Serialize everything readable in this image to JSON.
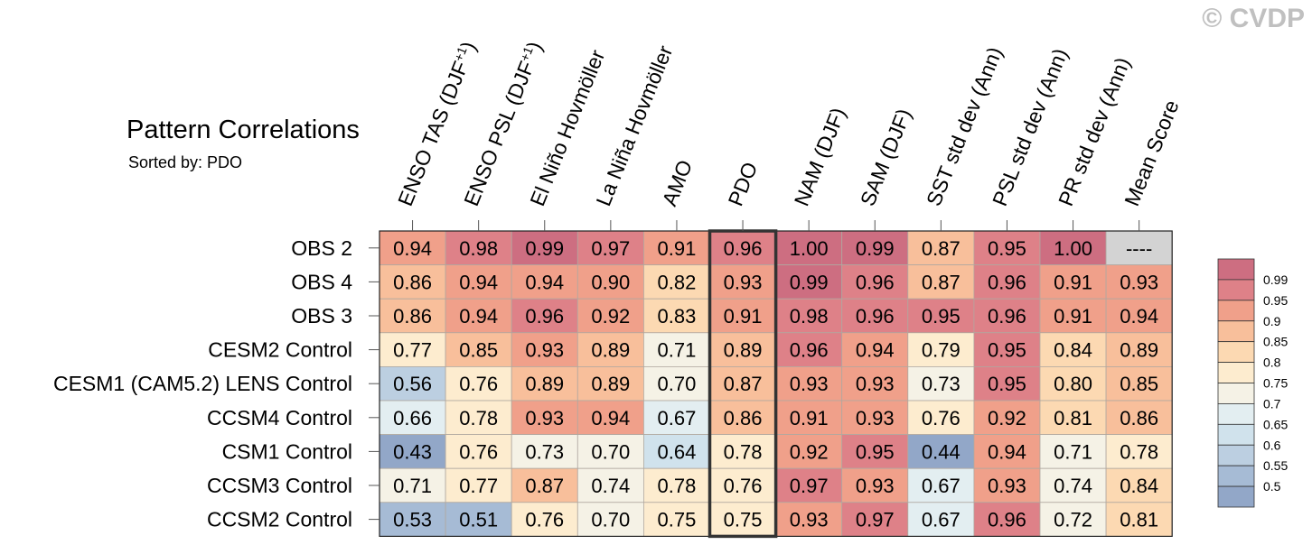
{
  "watermark": "© CVDP",
  "chart_data": {
    "type": "heatmap",
    "title": "Pattern Correlations",
    "subtitle": "Sorted by: PDO",
    "columns": [
      "ENSO TAS (DJF+1)",
      "ENSO PSL (DJF+1)",
      "El Niño Hovmöller",
      "La Niña Hovmöller",
      "AMO",
      "PDO",
      "NAM (DJF)",
      "SAM (DJF)",
      "SST std dev (Ann)",
      "PSL std dev (Ann)",
      "PR std dev (Ann)",
      "Mean Score"
    ],
    "rows": [
      "OBS 2",
      "OBS 4",
      "OBS 3",
      "CESM2 Control",
      "CESM1 (CAM5.2) LENS Control",
      "CCSM4 Control",
      "CSM1 Control",
      "CCSM3 Control",
      "CCSM2 Control"
    ],
    "values": [
      [
        "0.94",
        "0.98",
        "0.99",
        "0.97",
        "0.91",
        "0.96",
        "1.00",
        "0.99",
        "0.87",
        "0.95",
        "1.00",
        "----"
      ],
      [
        "0.86",
        "0.94",
        "0.94",
        "0.90",
        "0.82",
        "0.93",
        "0.99",
        "0.96",
        "0.87",
        "0.96",
        "0.91",
        "0.93"
      ],
      [
        "0.86",
        "0.94",
        "0.96",
        "0.92",
        "0.83",
        "0.91",
        "0.98",
        "0.96",
        "0.95",
        "0.96",
        "0.91",
        "0.94"
      ],
      [
        "0.77",
        "0.85",
        "0.93",
        "0.89",
        "0.71",
        "0.89",
        "0.96",
        "0.94",
        "0.79",
        "0.95",
        "0.84",
        "0.89"
      ],
      [
        "0.56",
        "0.76",
        "0.89",
        "0.89",
        "0.70",
        "0.87",
        "0.93",
        "0.93",
        "0.73",
        "0.95",
        "0.80",
        "0.85"
      ],
      [
        "0.66",
        "0.78",
        "0.93",
        "0.94",
        "0.67",
        "0.86",
        "0.91",
        "0.93",
        "0.76",
        "0.92",
        "0.81",
        "0.86"
      ],
      [
        "0.43",
        "0.76",
        "0.73",
        "0.70",
        "0.64",
        "0.78",
        "0.92",
        "0.95",
        "0.44",
        "0.94",
        "0.71",
        "0.78"
      ],
      [
        "0.71",
        "0.77",
        "0.87",
        "0.74",
        "0.78",
        "0.76",
        "0.97",
        "0.93",
        "0.67",
        "0.93",
        "0.74",
        "0.84"
      ],
      [
        "0.53",
        "0.51",
        "0.76",
        "0.70",
        "0.75",
        "0.75",
        "0.93",
        "0.97",
        "0.67",
        "0.96",
        "0.72",
        "0.81"
      ]
    ],
    "highlight_column": "PDO",
    "missing_color": "#d3d3d3",
    "colorbar": {
      "labels": [
        "0.99",
        "0.95",
        "0.9",
        "0.85",
        "0.8",
        "0.75",
        "0.7",
        "0.65",
        "0.6",
        "0.55",
        "0.5"
      ],
      "thresholds": [
        0.5,
        0.55,
        0.6,
        0.65,
        0.7,
        0.75,
        0.8,
        0.85,
        0.9,
        0.95,
        0.99
      ],
      "colors": [
        "#92a7c8",
        "#a6bbd5",
        "#bccfe1",
        "#d0e2ec",
        "#e3eef1",
        "#f5f2e6",
        "#fdeccf",
        "#fcd9b2",
        "#f8bf9b",
        "#f0a08a",
        "#de8188",
        "#cd6e81"
      ]
    }
  }
}
